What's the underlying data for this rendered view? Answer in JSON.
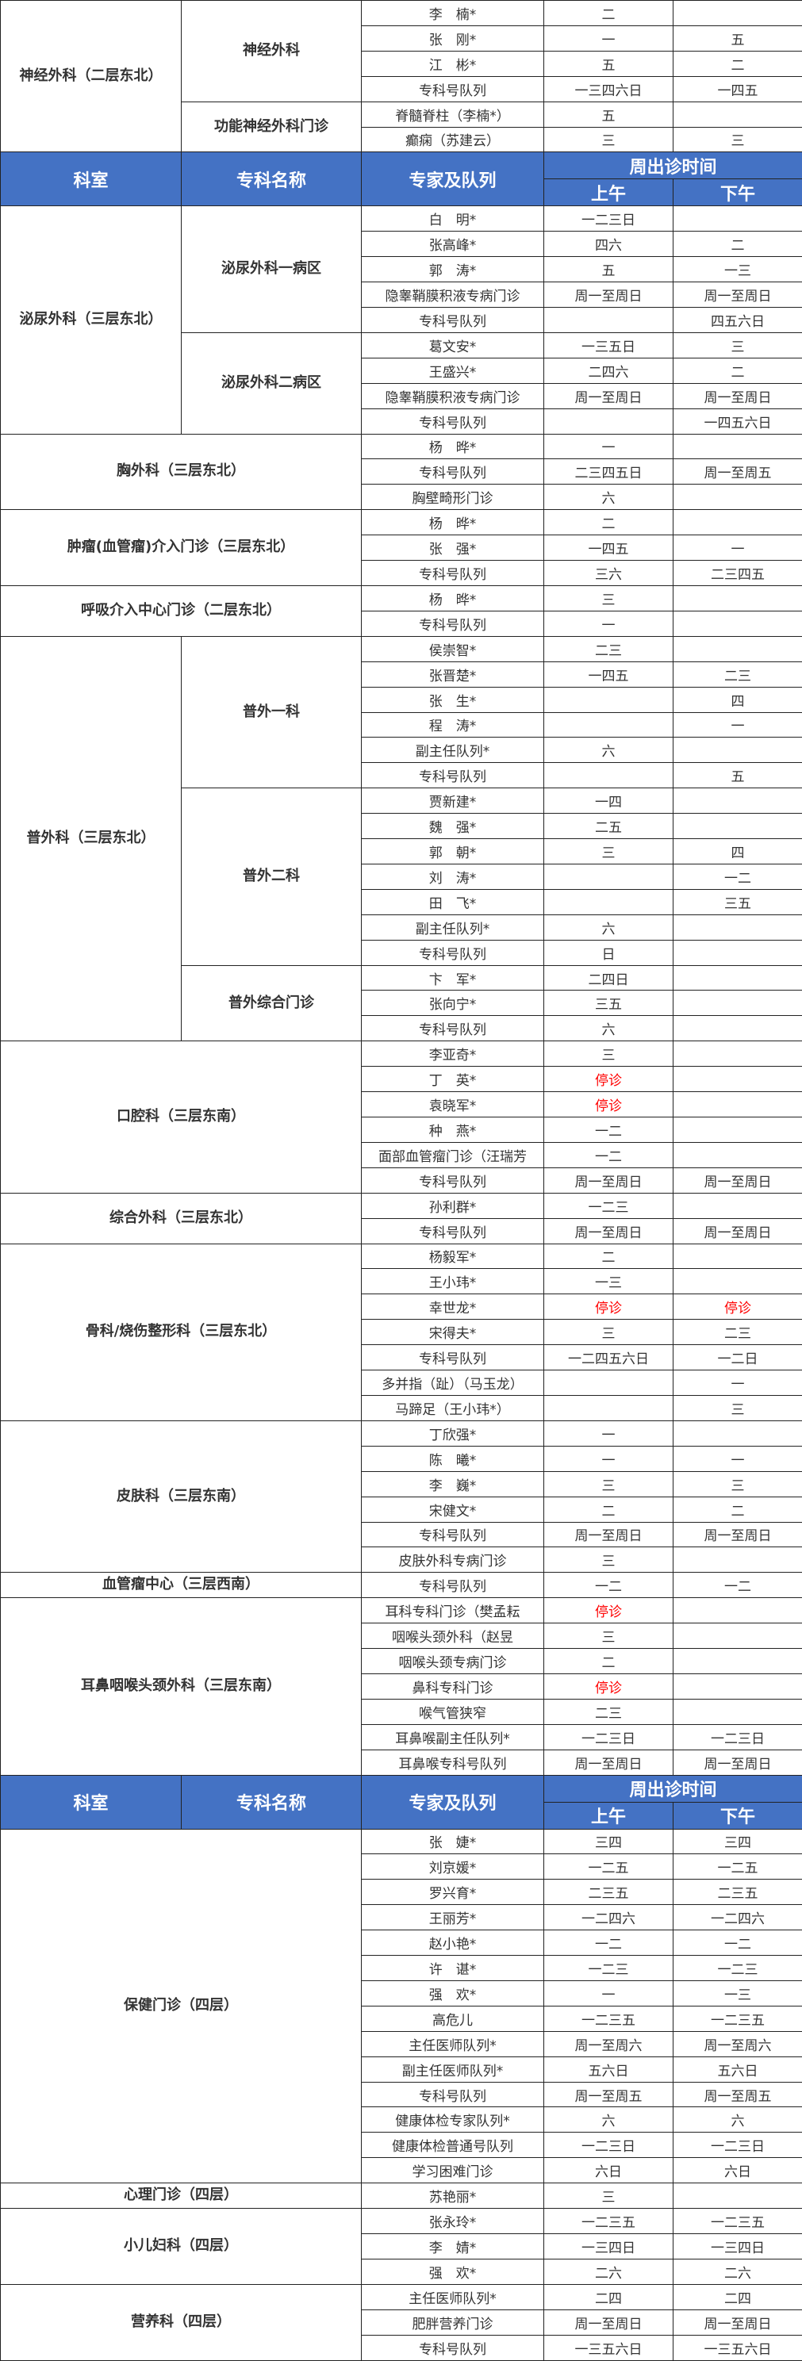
{
  "colors": {
    "header_bg": "#4472C4",
    "header_text": "#FFFFFF",
    "stop_text": "#FF0000",
    "text": "#333333"
  },
  "header": {
    "dept": "科室",
    "specialty": "专科名称",
    "expert": "专家及队列",
    "time": "周出诊时间",
    "am": "上午",
    "pm": "下午"
  },
  "stop_label": "停诊",
  "blocks": [
    {
      "type": "dept",
      "dept": "神经外科（二层东北）",
      "groups": [
        {
          "specialty": "神经外科",
          "rows": [
            [
              "李　楠*",
              "二",
              ""
            ],
            [
              "张　刚*",
              "一",
              "五"
            ],
            [
              "江　彬*",
              "五",
              "二"
            ],
            [
              "专科号队列",
              "一三四六日",
              "一四五"
            ]
          ]
        },
        {
          "specialty": "功能神经外科门诊",
          "rows": [
            [
              "脊髓脊柱（李楠*）",
              "五",
              ""
            ],
            [
              "癫痫（苏建云）",
              "三",
              "三"
            ]
          ]
        }
      ]
    },
    {
      "type": "header"
    },
    {
      "type": "dept",
      "dept": "泌尿外科（三层东北）",
      "groups": [
        {
          "specialty": "泌尿外科一病区",
          "rows": [
            [
              "白　明*",
              "一二三日",
              ""
            ],
            [
              "张高峰*",
              "四六",
              "二"
            ],
            [
              "郭　涛*",
              "五",
              "一三"
            ],
            [
              "隐睾鞘膜积液专病门诊",
              "周一至周日",
              "周一至周日"
            ],
            [
              "专科号队列",
              "",
              "四五六日"
            ]
          ]
        },
        {
          "specialty": "泌尿外科二病区",
          "rows": [
            [
              "葛文安*",
              "一三五日",
              "三"
            ],
            [
              "王盛兴*",
              "二四六",
              "二"
            ],
            [
              "隐睾鞘膜积液专病门诊",
              "周一至周日",
              "周一至周日"
            ],
            [
              "专科号队列",
              "",
              "一四五六日"
            ]
          ]
        }
      ]
    },
    {
      "type": "dept",
      "dept": "胸外科（三层东北）",
      "groups": [
        {
          "specialty": null,
          "rows": [
            [
              "杨　晔*",
              "一",
              ""
            ],
            [
              "专科号队列",
              "二三四五日",
              "周一至周五"
            ],
            [
              "胸壁畸形门诊",
              "六",
              ""
            ]
          ]
        }
      ]
    },
    {
      "type": "dept",
      "dept": "肿瘤(血管瘤)介入门诊（三层东北）",
      "groups": [
        {
          "specialty": null,
          "rows": [
            [
              "杨　晔*",
              "二",
              ""
            ],
            [
              "张　强*",
              "一四五",
              "一"
            ],
            [
              "专科号队列",
              "三六",
              "二三四五"
            ]
          ]
        }
      ]
    },
    {
      "type": "dept",
      "dept": "呼吸介入中心门诊（二层东北）",
      "groups": [
        {
          "specialty": null,
          "rows": [
            [
              "杨　晔*",
              "三",
              ""
            ],
            [
              "专科号队列",
              "一",
              ""
            ]
          ]
        }
      ]
    },
    {
      "type": "dept",
      "dept": "普外科（三层东北）",
      "groups": [
        {
          "specialty": "普外一科",
          "rows": [
            [
              "侯崇智*",
              "二三",
              ""
            ],
            [
              "张晋楚*",
              "一四五",
              "二三"
            ],
            [
              "张　生*",
              "",
              "四"
            ],
            [
              "程　涛*",
              "",
              "一"
            ],
            [
              "副主任队列*",
              "六",
              ""
            ],
            [
              "专科号队列",
              "",
              "五"
            ]
          ]
        },
        {
          "specialty": "普外二科",
          "rows": [
            [
              "贾新建*",
              "一四",
              ""
            ],
            [
              "魏　强*",
              "二五",
              ""
            ],
            [
              "郭　朝*",
              "三",
              "四"
            ],
            [
              "刘　涛*",
              "",
              "一二"
            ],
            [
              "田　飞*",
              "",
              "三五"
            ],
            [
              "副主任队列*",
              "六",
              ""
            ],
            [
              "专科号队列",
              "日",
              ""
            ]
          ]
        },
        {
          "specialty": "普外综合门诊",
          "rows": [
            [
              "卞　军*",
              "二四日",
              ""
            ],
            [
              "张向宁*",
              "三五",
              ""
            ],
            [
              "专科号队列",
              "六",
              ""
            ]
          ]
        }
      ]
    },
    {
      "type": "dept",
      "dept": "口腔科（三层东南）",
      "groups": [
        {
          "specialty": null,
          "rows": [
            [
              "李亚奇*",
              "三",
              ""
            ],
            [
              "丁　英*",
              "停诊",
              ""
            ],
            [
              "袁晓军*",
              "停诊",
              ""
            ],
            [
              "种　燕*",
              "一二",
              ""
            ],
            [
              "面部血管瘤门诊（汪瑞芳",
              "一二",
              ""
            ],
            [
              "专科号队列",
              "周一至周日",
              "周一至周日"
            ]
          ]
        }
      ]
    },
    {
      "type": "dept",
      "dept": "综合外科（三层东北）",
      "groups": [
        {
          "specialty": null,
          "rows": [
            [
              "孙利群*",
              "一二三",
              ""
            ],
            [
              "专科号队列",
              "周一至周日",
              "周一至周日"
            ]
          ]
        }
      ]
    },
    {
      "type": "dept",
      "dept": "骨科/烧伤整形科（三层东北）",
      "groups": [
        {
          "specialty": null,
          "rows": [
            [
              "杨毅军*",
              "二",
              ""
            ],
            [
              "王小玮*",
              "一三",
              ""
            ],
            [
              "幸世龙*",
              "停诊",
              "停诊"
            ],
            [
              "宋得夫*",
              "三",
              "二三"
            ],
            [
              "专科号队列",
              "一二四五六日",
              "一二日"
            ],
            [
              "多并指（趾）（马玉龙）",
              "",
              "一"
            ],
            [
              "马蹄足（王小玮*）",
              "",
              "三"
            ]
          ]
        }
      ]
    },
    {
      "type": "dept",
      "dept": "皮肤科（三层东南）",
      "groups": [
        {
          "specialty": null,
          "rows": [
            [
              "丁欣强*",
              "一",
              ""
            ],
            [
              "陈　曦*",
              "一",
              "一"
            ],
            [
              "李　巍*",
              "三",
              "三"
            ],
            [
              "宋健文*",
              "二",
              "二"
            ],
            [
              "专科号队列",
              "周一至周日",
              "周一至周日"
            ],
            [
              "皮肤外科专病门诊",
              "三",
              ""
            ]
          ]
        }
      ]
    },
    {
      "type": "dept",
      "dept": "血管瘤中心（三层西南）",
      "groups": [
        {
          "specialty": null,
          "rows": [
            [
              "专科号队列",
              "一二",
              "一二"
            ]
          ]
        }
      ]
    },
    {
      "type": "dept",
      "dept": "耳鼻咽喉头颈外科（三层东南）",
      "groups": [
        {
          "specialty": null,
          "rows": [
            [
              "耳科专科门诊（樊孟耘",
              "停诊",
              ""
            ],
            [
              "咽喉头颈外科（赵昱",
              "三",
              ""
            ],
            [
              "咽喉头颈专病门诊",
              "二",
              ""
            ],
            [
              "鼻科专科门诊",
              "停诊",
              ""
            ],
            [
              "喉气管狭窄",
              "二三",
              ""
            ],
            [
              "耳鼻喉副主任队列*",
              "一二三日",
              "一二三日"
            ],
            [
              "耳鼻喉专科号队列",
              "周一至周日",
              "周一至周日"
            ]
          ]
        }
      ]
    },
    {
      "type": "header"
    },
    {
      "type": "dept",
      "dept": "保健门诊（四层）",
      "groups": [
        {
          "specialty": null,
          "rows": [
            [
              "张　婕*",
              "三四",
              "三四"
            ],
            [
              "刘京媛*",
              "一二五",
              "一二五"
            ],
            [
              "罗兴育*",
              "二三五",
              "二三五"
            ],
            [
              "王丽芳*",
              "一二四六",
              "一二四六"
            ],
            [
              "赵小艳*",
              "一二",
              "一二"
            ],
            [
              "许　谌*",
              "一二三",
              "一二三"
            ],
            [
              "强　欢*",
              "一",
              "一三"
            ],
            [
              "高危儿",
              "一二三五",
              "一二三五"
            ],
            [
              "主任医师队列*",
              "周一至周六",
              "周一至周六"
            ],
            [
              "副主任医师队列*",
              "五六日",
              "五六日"
            ],
            [
              "专科号队列",
              "周一至周五",
              "周一至周五"
            ],
            [
              "健康体检专家队列*",
              "六",
              "六"
            ],
            [
              "健康体检普通号队列",
              "一二三日",
              "一二三日"
            ],
            [
              "学习困难门诊",
              "六日",
              "六日"
            ]
          ]
        }
      ]
    },
    {
      "type": "dept",
      "dept": "心理门诊（四层）",
      "groups": [
        {
          "specialty": null,
          "rows": [
            [
              "苏艳丽*",
              "三",
              ""
            ]
          ]
        }
      ]
    },
    {
      "type": "dept",
      "dept": "小儿妇科（四层）",
      "groups": [
        {
          "specialty": null,
          "rows": [
            [
              "张永玲*",
              "一二三五",
              "一二三五"
            ],
            [
              "李　婧*",
              "一三四日",
              "一三四日"
            ],
            [
              "强　欢*",
              "二六",
              "二六"
            ]
          ]
        }
      ]
    },
    {
      "type": "dept",
      "dept": "营养科（四层）",
      "groups": [
        {
          "specialty": null,
          "rows": [
            [
              "主任医师队列*",
              "二四",
              "二四"
            ],
            [
              "肥胖营养门诊",
              "周一至周日",
              "周一至周日"
            ],
            [
              "专科号队列",
              "一三五六日",
              "一三五六日"
            ]
          ]
        }
      ]
    }
  ]
}
